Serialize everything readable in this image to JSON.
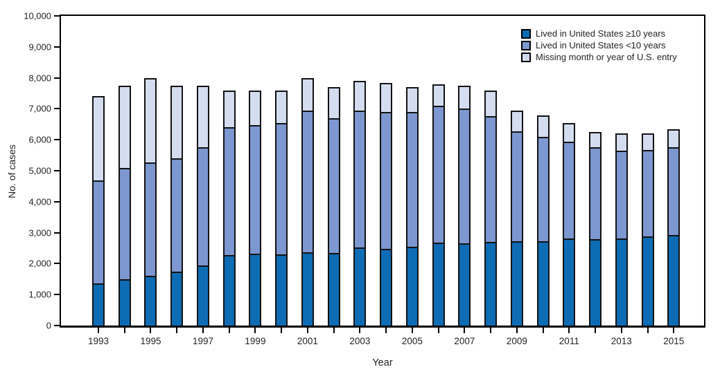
{
  "chart_data": {
    "type": "bar",
    "stacked": true,
    "title": "",
    "xlabel": "Year",
    "ylabel": "No. of cases",
    "ylim": [
      0,
      10000
    ],
    "ytick_step": 1000,
    "ytick_labels": [
      "0",
      "1,000",
      "2,000",
      "3,000",
      "4,000",
      "5,000",
      "6,000",
      "7,000",
      "8,000",
      "9,000",
      "10,000"
    ],
    "categories": [
      "1993",
      "1994",
      "1995",
      "1996",
      "1997",
      "1998",
      "1999",
      "2000",
      "2001",
      "2002",
      "2003",
      "2004",
      "2005",
      "2006",
      "2007",
      "2008",
      "2009",
      "2010",
      "2011",
      "2012",
      "2013",
      "2014",
      "2015"
    ],
    "xtick_labels_shown": [
      "1993",
      "1995",
      "1997",
      "1999",
      "2001",
      "2003",
      "2005",
      "2007",
      "2009",
      "2011",
      "2013",
      "2015"
    ],
    "grid": false,
    "legend_position": "top-right",
    "frame_color": "#000000",
    "series": [
      {
        "name": "Lived in United States ≥10 years",
        "color": "#0e6cb5",
        "values": [
          1350,
          1500,
          1600,
          1750,
          1950,
          2280,
          2330,
          2290,
          2360,
          2340,
          2520,
          2480,
          2550,
          2680,
          2660,
          2700,
          2720,
          2730,
          2810,
          2790,
          2810,
          2890,
          2930
        ]
      },
      {
        "name": "Lived in United States <10 years",
        "color": "#7d97d0",
        "values": [
          3330,
          3580,
          3670,
          3650,
          3800,
          4120,
          4150,
          4260,
          4590,
          4360,
          4430,
          4420,
          4350,
          4420,
          4340,
          4070,
          3560,
          3370,
          3120,
          2970,
          2830,
          2790,
          2830
        ]
      },
      {
        "name": "Missing month or year of U.S. entry",
        "color": "#d4ddf0",
        "values": [
          2720,
          2670,
          2730,
          2350,
          2000,
          1200,
          1120,
          1050,
          1050,
          1000,
          950,
          930,
          800,
          700,
          750,
          830,
          670,
          680,
          620,
          490,
          560,
          520,
          590
        ]
      }
    ]
  }
}
